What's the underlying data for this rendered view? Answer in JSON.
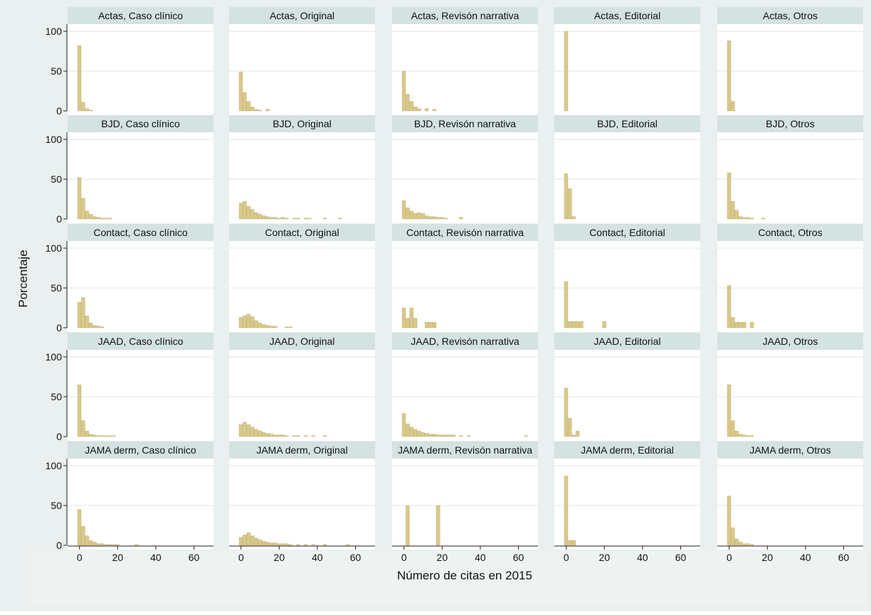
{
  "colors": {
    "outer_background": "#e9f0ef",
    "panel_background": "#ffffff",
    "strip_background": "#d4e2e1",
    "bar_fill": "#d9c98b",
    "bar_stroke": "#b9a766",
    "gridline": "#dfe7e6",
    "axis": "#222222",
    "text": "#111111"
  },
  "chart_data": {
    "type": "bar",
    "subtype": "histogram small multiples",
    "xlabel": "Número de citas en 2015",
    "ylabel": "Porcentaje",
    "xlim": [
      -4,
      68
    ],
    "ylim": [
      0,
      100
    ],
    "x_ticks": [
      "0",
      "20",
      "40",
      "60"
    ],
    "y_ticks": [
      "0",
      "50",
      "100"
    ],
    "bin_width": 2,
    "grid": "horizontal",
    "panels": [
      {
        "title": "Actas, Caso clínico",
        "bins": [
          [
            0,
            82
          ],
          [
            2,
            11
          ],
          [
            4,
            3
          ],
          [
            6,
            1
          ]
        ]
      },
      {
        "title": "Actas, Original",
        "bins": [
          [
            0,
            49
          ],
          [
            2,
            23
          ],
          [
            4,
            12
          ],
          [
            6,
            5
          ],
          [
            8,
            2
          ],
          [
            10,
            1
          ],
          [
            14,
            2
          ]
        ]
      },
      {
        "title": "Actas, Revisón narrativa",
        "bins": [
          [
            0,
            50
          ],
          [
            2,
            21
          ],
          [
            4,
            12
          ],
          [
            6,
            5
          ],
          [
            8,
            3
          ],
          [
            12,
            3
          ],
          [
            16,
            2
          ]
        ]
      },
      {
        "title": "Actas, Editorial",
        "bins": [
          [
            0,
            100
          ]
        ]
      },
      {
        "title": "Actas, Otros",
        "bins": [
          [
            0,
            88
          ],
          [
            2,
            12
          ]
        ]
      },
      {
        "title": "BJD, Caso clínico",
        "bins": [
          [
            0,
            52
          ],
          [
            2,
            26
          ],
          [
            4,
            10
          ],
          [
            6,
            6
          ],
          [
            8,
            3
          ],
          [
            10,
            2
          ],
          [
            12,
            1
          ],
          [
            14,
            1
          ],
          [
            16,
            1
          ]
        ]
      },
      {
        "title": "BJD, Original",
        "bins": [
          [
            0,
            20
          ],
          [
            2,
            22
          ],
          [
            4,
            16
          ],
          [
            6,
            12
          ],
          [
            8,
            8
          ],
          [
            10,
            6
          ],
          [
            12,
            4
          ],
          [
            14,
            3
          ],
          [
            16,
            2
          ],
          [
            18,
            2
          ],
          [
            20,
            1
          ],
          [
            22,
            2
          ],
          [
            24,
            1
          ],
          [
            28,
            1
          ],
          [
            30,
            1
          ],
          [
            34,
            1
          ],
          [
            36,
            1
          ],
          [
            44,
            1
          ],
          [
            52,
            1
          ]
        ]
      },
      {
        "title": "BJD, Revisón narrativa",
        "bins": [
          [
            0,
            23
          ],
          [
            2,
            14
          ],
          [
            4,
            10
          ],
          [
            6,
            7
          ],
          [
            8,
            8
          ],
          [
            10,
            7
          ],
          [
            12,
            4
          ],
          [
            14,
            3
          ],
          [
            16,
            3
          ],
          [
            18,
            2
          ],
          [
            20,
            2
          ],
          [
            22,
            1
          ],
          [
            30,
            2
          ]
        ]
      },
      {
        "title": "BJD, Editorial",
        "bins": [
          [
            0,
            57
          ],
          [
            2,
            38
          ],
          [
            4,
            3
          ]
        ]
      },
      {
        "title": "BJD, Otros",
        "bins": [
          [
            0,
            58
          ],
          [
            2,
            22
          ],
          [
            4,
            11
          ],
          [
            6,
            3
          ],
          [
            8,
            2
          ],
          [
            10,
            2
          ],
          [
            12,
            1
          ],
          [
            18,
            1
          ]
        ]
      },
      {
        "title": "Contact, Caso clínico",
        "bins": [
          [
            0,
            32
          ],
          [
            2,
            38
          ],
          [
            4,
            15
          ],
          [
            6,
            6
          ],
          [
            8,
            3
          ],
          [
            10,
            2
          ],
          [
            12,
            1
          ]
        ]
      },
      {
        "title": "Contact, Original",
        "bins": [
          [
            0,
            13
          ],
          [
            2,
            15
          ],
          [
            4,
            17
          ],
          [
            6,
            14
          ],
          [
            8,
            9
          ],
          [
            10,
            6
          ],
          [
            12,
            4
          ],
          [
            14,
            3
          ],
          [
            16,
            2
          ],
          [
            18,
            2
          ],
          [
            24,
            1
          ],
          [
            26,
            1
          ]
        ]
      },
      {
        "title": "Contact, Revisón narrativa",
        "bins": [
          [
            0,
            25
          ],
          [
            2,
            12
          ],
          [
            4,
            25
          ],
          [
            6,
            12
          ],
          [
            12,
            7
          ],
          [
            14,
            7
          ],
          [
            16,
            7
          ]
        ]
      },
      {
        "title": "Contact, Editorial",
        "bins": [
          [
            0,
            58
          ],
          [
            2,
            8
          ],
          [
            4,
            8
          ],
          [
            6,
            8
          ],
          [
            8,
            8
          ],
          [
            20,
            8
          ]
        ]
      },
      {
        "title": "Contact, Otros",
        "bins": [
          [
            0,
            53
          ],
          [
            2,
            13
          ],
          [
            4,
            7
          ],
          [
            6,
            7
          ],
          [
            8,
            7
          ],
          [
            12,
            7
          ]
        ]
      },
      {
        "title": "JAAD, Caso clínico",
        "bins": [
          [
            0,
            65
          ],
          [
            2,
            20
          ],
          [
            4,
            7
          ],
          [
            6,
            3
          ],
          [
            8,
            2
          ],
          [
            10,
            1
          ],
          [
            12,
            1
          ],
          [
            14,
            1
          ],
          [
            16,
            1
          ],
          [
            18,
            1
          ]
        ]
      },
      {
        "title": "JAAD, Original",
        "bins": [
          [
            0,
            15
          ],
          [
            2,
            18
          ],
          [
            4,
            15
          ],
          [
            6,
            12
          ],
          [
            8,
            9
          ],
          [
            10,
            7
          ],
          [
            12,
            5
          ],
          [
            14,
            4
          ],
          [
            16,
            3
          ],
          [
            18,
            2
          ],
          [
            20,
            2
          ],
          [
            22,
            2
          ],
          [
            24,
            1
          ],
          [
            28,
            1
          ],
          [
            30,
            1
          ],
          [
            34,
            1
          ],
          [
            38,
            1
          ],
          [
            44,
            1
          ]
        ]
      },
      {
        "title": "JAAD, Revisón narrativa",
        "bins": [
          [
            0,
            29
          ],
          [
            2,
            16
          ],
          [
            4,
            12
          ],
          [
            6,
            9
          ],
          [
            8,
            7
          ],
          [
            10,
            5
          ],
          [
            12,
            4
          ],
          [
            14,
            3
          ],
          [
            16,
            3
          ],
          [
            18,
            2
          ],
          [
            20,
            2
          ],
          [
            22,
            2
          ],
          [
            24,
            2
          ],
          [
            26,
            2
          ],
          [
            30,
            1
          ],
          [
            34,
            1
          ],
          [
            64,
            1
          ]
        ]
      },
      {
        "title": "JAAD, Editorial",
        "bins": [
          [
            0,
            61
          ],
          [
            2,
            23
          ],
          [
            4,
            2
          ],
          [
            6,
            7
          ]
        ]
      },
      {
        "title": "JAAD, Otros",
        "bins": [
          [
            0,
            65
          ],
          [
            2,
            20
          ],
          [
            4,
            7
          ],
          [
            6,
            3
          ],
          [
            8,
            2
          ],
          [
            10,
            1
          ],
          [
            12,
            1
          ]
        ]
      },
      {
        "title": "JAMA derm, Caso clínico",
        "bins": [
          [
            0,
            45
          ],
          [
            2,
            24
          ],
          [
            4,
            12
          ],
          [
            6,
            6
          ],
          [
            8,
            4
          ],
          [
            10,
            2
          ],
          [
            12,
            2
          ],
          [
            14,
            1
          ],
          [
            16,
            1
          ],
          [
            18,
            1
          ],
          [
            20,
            1
          ],
          [
            30,
            1
          ]
        ]
      },
      {
        "title": "JAMA derm, Original",
        "bins": [
          [
            0,
            10
          ],
          [
            2,
            13
          ],
          [
            4,
            16
          ],
          [
            6,
            12
          ],
          [
            8,
            9
          ],
          [
            10,
            7
          ],
          [
            12,
            5
          ],
          [
            14,
            4
          ],
          [
            16,
            3
          ],
          [
            18,
            3
          ],
          [
            20,
            2
          ],
          [
            22,
            2
          ],
          [
            24,
            2
          ],
          [
            26,
            1
          ],
          [
            30,
            1
          ],
          [
            34,
            1
          ],
          [
            38,
            1
          ],
          [
            44,
            1
          ],
          [
            56,
            1
          ]
        ]
      },
      {
        "title": "JAMA derm, Revisón narrativa",
        "bins": [
          [
            2,
            50
          ],
          [
            18,
            50
          ]
        ]
      },
      {
        "title": "JAMA derm, Editorial",
        "bins": [
          [
            0,
            87
          ],
          [
            2,
            6
          ],
          [
            4,
            6
          ]
        ]
      },
      {
        "title": "JAMA derm, Otros",
        "bins": [
          [
            0,
            62
          ],
          [
            2,
            22
          ],
          [
            4,
            8
          ],
          [
            6,
            4
          ],
          [
            8,
            2
          ],
          [
            10,
            2
          ],
          [
            12,
            1
          ]
        ]
      }
    ]
  }
}
